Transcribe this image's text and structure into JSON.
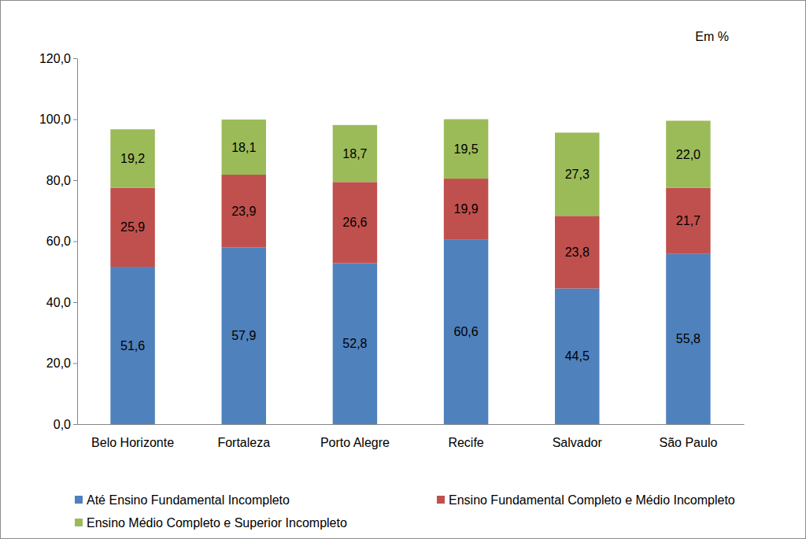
{
  "chart_data": {
    "type": "bar",
    "stacked": true,
    "data_labels": true,
    "grid": false,
    "legend": "bottom",
    "annotations": [
      "Em %"
    ],
    "categories": [
      "Belo Horizonte",
      "Fortaleza",
      "Porto Alegre",
      "Recife",
      "Salvador",
      "São Paulo"
    ],
    "series": [
      {
        "name": "Até Ensino Fundamental Incompleto",
        "color": "#4f81bd",
        "values": [
          51.6,
          57.9,
          52.8,
          60.6,
          44.5,
          55.8
        ],
        "value_labels": [
          "51,6",
          "57,9",
          "52,8",
          "60,6",
          "44,5",
          "55,8"
        ]
      },
      {
        "name": "Ensino Fundamental Completo e Médio Incompleto",
        "color": "#c0504d",
        "values": [
          25.9,
          23.9,
          26.6,
          19.9,
          23.8,
          21.7
        ],
        "value_labels": [
          "25,9",
          "23,9",
          "26,6",
          "19,9",
          "23,8",
          "21,7"
        ]
      },
      {
        "name": "Ensino Médio Completo e Superior Incompleto",
        "color": "#9bbb59",
        "values": [
          19.2,
          18.1,
          18.7,
          19.5,
          27.3,
          22.0
        ],
        "value_labels": [
          "19,2",
          "18,1",
          "18,7",
          "19,5",
          "27,3",
          "22,0"
        ]
      }
    ],
    "ylim": [
      0,
      120
    ],
    "yticks": [
      {
        "value": 0,
        "label": "0,0"
      },
      {
        "value": 20,
        "label": "20,0"
      },
      {
        "value": 40,
        "label": "40,0"
      },
      {
        "value": 60,
        "label": "60,0"
      },
      {
        "value": 80,
        "label": "80,0"
      },
      {
        "value": 100,
        "label": "100,0"
      },
      {
        "value": 120,
        "label": "120,0"
      }
    ]
  }
}
